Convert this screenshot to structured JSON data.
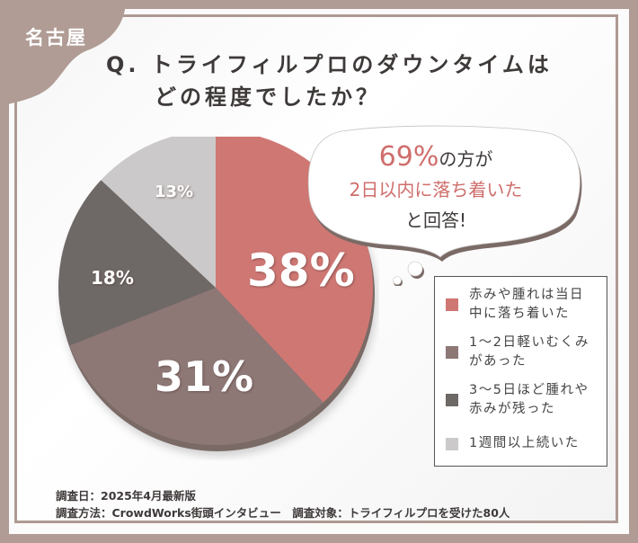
{
  "badge": {
    "label": "名古屋",
    "color": "#b09c95"
  },
  "title": {
    "line1": "Q. トライフィルプロのダウンタイムは",
    "line2": "どの程度でしたか？"
  },
  "callout": {
    "percent": "69%",
    "line1_suffix": "の方が",
    "line2": "2日以内に落ち着いた",
    "line3": "と回答!"
  },
  "chart_data": {
    "type": "pie",
    "title": "Q. トライフィルプロのダウンタイムはどの程度でしたか？",
    "categories": [
      "赤みや腫れは当日中に落ち着いた",
      "1〜2日軽いむくみがあった",
      "3〜5日ほど腫れや赤みが残った",
      "1週間以上続いた"
    ],
    "values": [
      38,
      31,
      18,
      13
    ],
    "labels": [
      "38%",
      "31%",
      "18%",
      "13%"
    ],
    "colors": [
      "#cf7773",
      "#8d7876",
      "#6e6866",
      "#cbc9c9"
    ],
    "start_angle": "12 o'clock, clockwise",
    "legend_position": "right"
  },
  "legend": {
    "items": [
      {
        "line1": "赤みや腫れは当日",
        "line2": "中に落ち着いた",
        "color": "#cf7773"
      },
      {
        "line1": "1〜2日軽いむくみ",
        "line2": "があった",
        "color": "#8d7876"
      },
      {
        "line1": "3〜5日ほど腫れや",
        "line2": "赤みが残った",
        "color": "#6e6866"
      },
      {
        "line1": "1週間以上続いた",
        "line2": "",
        "color": "#cbc9c9"
      }
    ]
  },
  "footer": {
    "line1": "調査日：2025年4月最新版",
    "line2": "調査方法：CrowdWorks街頭インタビュー　調査対象：トライフィルプロを受けた80人"
  }
}
